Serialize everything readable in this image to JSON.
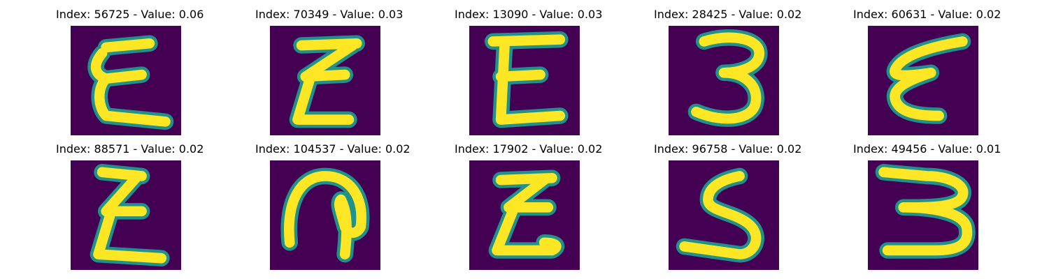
{
  "colors": {
    "background": "#440154",
    "halo": "#21918c",
    "stroke": "#fde725"
  },
  "panels": [
    {
      "title": "Index: 56725 - Value: 0.06",
      "glyph": "epsilon-open-top"
    },
    {
      "title": "Index: 70349 - Value: 0.03",
      "glyph": "sigma-like-e"
    },
    {
      "title": "Index: 13090 - Value: 0.03",
      "glyph": "capital-e"
    },
    {
      "title": "Index: 28425 - Value: 0.02",
      "glyph": "digit-three"
    },
    {
      "title": "Index: 60631 - Value: 0.02",
      "glyph": "slanted-epsilon"
    },
    {
      "title": "Index: 88571 - Value: 0.02",
      "glyph": "sigma-like-e"
    },
    {
      "title": "Index: 104537 - Value: 0.02",
      "glyph": "arch-with-stem"
    },
    {
      "title": "Index: 17902 - Value: 0.02",
      "glyph": "epsilon-curly-tail"
    },
    {
      "title": "Index: 96758 - Value: 0.02",
      "glyph": "digit-five-curve"
    },
    {
      "title": "Index: 49456 - Value: 0.01",
      "glyph": "wide-three"
    }
  ]
}
